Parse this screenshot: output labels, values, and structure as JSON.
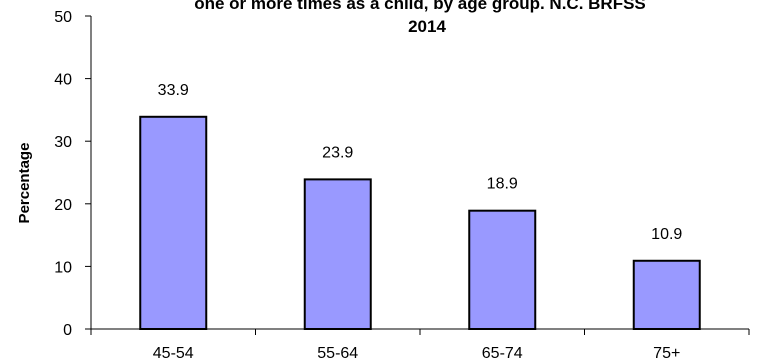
{
  "chart_data": {
    "type": "bar",
    "title_lines": [
      "one or more times as a child, by age group. N.C. BRFSS",
      "2014"
    ],
    "categories": [
      "45-54",
      "55-64",
      "65-74",
      "75+"
    ],
    "values": [
      33.9,
      23.9,
      18.9,
      10.9
    ],
    "data_labels": [
      "33.9",
      "23.9",
      "18.9",
      "10.9"
    ],
    "ylabel": "Percentage",
    "xlabel": "",
    "ylim": [
      0,
      50
    ],
    "yticks": [
      "0",
      "10",
      "20",
      "30",
      "40",
      "50"
    ],
    "bar_color": "#9999ff",
    "grid": false,
    "legend": "none"
  }
}
